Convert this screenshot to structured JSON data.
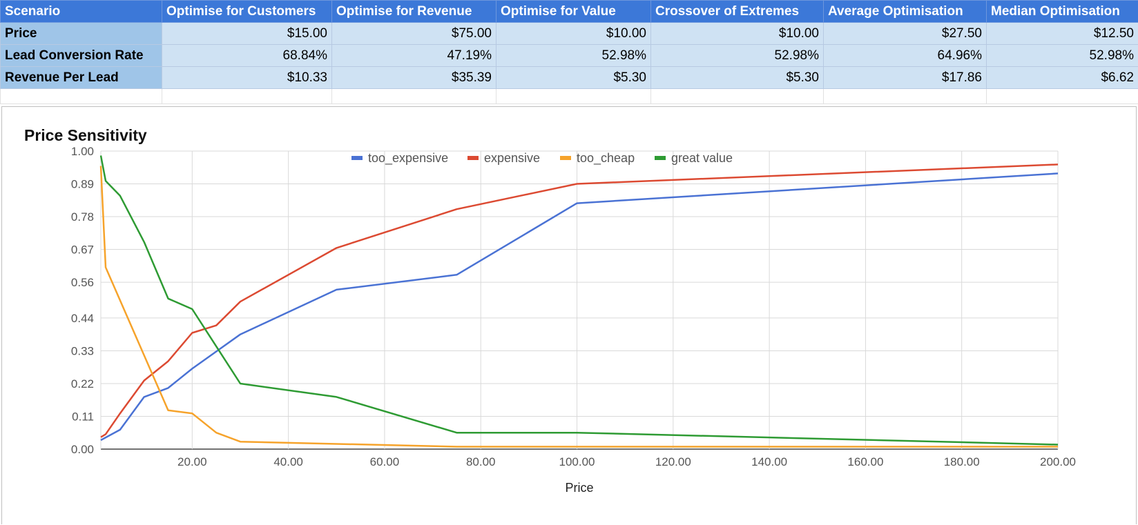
{
  "table": {
    "headers": [
      "Scenario",
      "Optimise for Customers",
      "Optimise for Revenue",
      "Optimise for Value",
      "Crossover of Extremes",
      "Average Optimisation",
      "Median Optimisation"
    ],
    "rows": [
      {
        "label": "Price",
        "values": [
          "$15.00",
          "$75.00",
          "$10.00",
          "$10.00",
          "$27.50",
          "$12.50"
        ]
      },
      {
        "label": "Lead Conversion Rate",
        "values": [
          "68.84%",
          "47.19%",
          "52.98%",
          "52.98%",
          "64.96%",
          "52.98%"
        ]
      },
      {
        "label": "Revenue Per Lead",
        "values": [
          "$10.33",
          "$35.39",
          "$5.30",
          "$5.30",
          "$17.86",
          "$6.62"
        ]
      }
    ]
  },
  "chart_data": {
    "type": "line",
    "title": "Price Sensitivity",
    "xlabel": "Price",
    "ylabel": "",
    "xlim": [
      1,
      200
    ],
    "ylim": [
      0,
      1
    ],
    "x_ticks": [
      20,
      40,
      60,
      80,
      100,
      120,
      140,
      160,
      180,
      200
    ],
    "x_tick_labels": [
      "20.00",
      "40.00",
      "60.00",
      "80.00",
      "100.00",
      "120.00",
      "140.00",
      "160.00",
      "180.00",
      "200.00"
    ],
    "y_ticks": [
      0,
      0.11,
      0.22,
      0.33,
      0.44,
      0.56,
      0.67,
      0.78,
      0.89,
      1.0
    ],
    "y_tick_labels": [
      "0.00",
      "0.11",
      "0.22",
      "0.33",
      "0.44",
      "0.56",
      "0.67",
      "0.78",
      "0.89",
      "1.00"
    ],
    "grid": true,
    "legend_position": "top",
    "series": [
      {
        "name": "too_expensive",
        "color": "#4a72d4",
        "x": [
          1,
          5,
          10,
          15,
          20,
          30,
          50,
          75,
          100,
          200
        ],
        "y": [
          0.03,
          0.065,
          0.175,
          0.205,
          0.27,
          0.385,
          0.535,
          0.585,
          0.825,
          0.925
        ]
      },
      {
        "name": "expensive",
        "color": "#dc4a32",
        "x": [
          1,
          2,
          5,
          10,
          15,
          20,
          25,
          30,
          50,
          75,
          100,
          200
        ],
        "y": [
          0.04,
          0.05,
          0.12,
          0.23,
          0.295,
          0.39,
          0.415,
          0.495,
          0.675,
          0.805,
          0.89,
          0.955
        ]
      },
      {
        "name": "too_cheap",
        "color": "#f6a32b",
        "x": [
          1,
          2,
          15,
          20,
          25,
          30,
          75,
          100,
          200
        ],
        "y": [
          0.95,
          0.61,
          0.13,
          0.12,
          0.055,
          0.025,
          0.008,
          0.008,
          0.008
        ]
      },
      {
        "name": "great value",
        "color": "#2e9b33",
        "x": [
          1,
          2,
          5,
          10,
          15,
          20,
          30,
          50,
          75,
          100,
          200
        ],
        "y": [
          0.985,
          0.9,
          0.85,
          0.695,
          0.505,
          0.47,
          0.22,
          0.175,
          0.055,
          0.055,
          0.015
        ]
      }
    ]
  }
}
